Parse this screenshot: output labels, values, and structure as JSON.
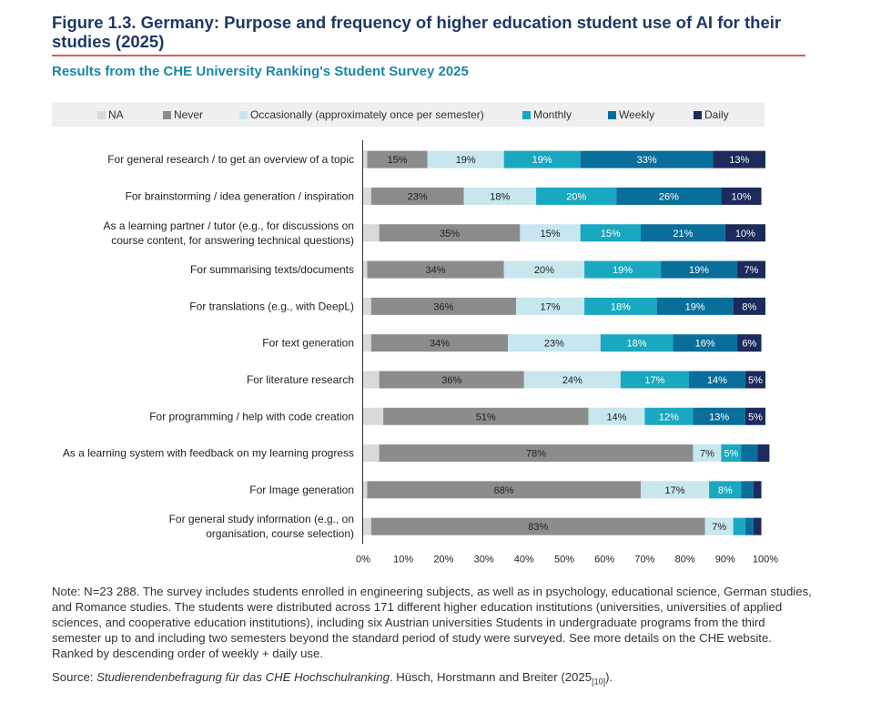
{
  "figure": {
    "title": "Figure 1.3. Germany: Purpose and frequency of higher education student use of AI for their studies (2025)",
    "subtitle": "Results from the CHE University Ranking's Student Survey 2025",
    "note": "Note: N=23 288. The survey includes students enrolled in engineering subjects, as well as in psychology, educational science, German studies, and Romance studies. The students were distributed across 171 different higher education institutions (universities, universities of applied sciences, and cooperative education institutions), including six Austrian universities Students in undergraduate programs from the third semester up to and including two semesters beyond the standard period of study were surveyed. See more details on the CHE website. Ranked by descending order of weekly + daily use.",
    "source_prefix": "Source: ",
    "source_italic": "Studierendenbefragung für das CHE Hochschulranking",
    "source_rest": ". Hüsch, Horstmann and Breiter (2025",
    "source_ref": "[10]",
    "source_end": ")."
  },
  "colors": {
    "NA": "#d9d9d9",
    "Never": "#8c8c8c",
    "Occasionally": "#c7e6ee",
    "Monthly": "#1aa8c0",
    "Weekly": "#0a6e9a",
    "Daily": "#1d2a5c"
  },
  "chart_data": {
    "type": "bar",
    "orientation": "horizontal",
    "stacked": true,
    "categories": [
      "For general research / to get an overview of a topic",
      "For brainstorming / idea generation / inspiration",
      "As a learning partner / tutor (e.g., for discussions on course content, for answering technical questions)",
      "For summarising texts/documents",
      "For translations (e.g., with DeepL)",
      "For text generation",
      "For literature research",
      "For programming / help with code creation",
      "As a learning system with feedback on my learning progress",
      "For Image generation",
      "For general study information (e.g., on organisation, course selection)"
    ],
    "category_lines": [
      [
        "For general research / to get an overview of a topic"
      ],
      [
        "For brainstorming / idea generation / inspiration"
      ],
      [
        "As a learning partner / tutor (e.g., for discussions on",
        "course content, for answering technical questions)"
      ],
      [
        "For summarising texts/documents"
      ],
      [
        "For translations (e.g., with DeepL)"
      ],
      [
        "For text generation"
      ],
      [
        "For literature research"
      ],
      [
        "For programming / help with code creation"
      ],
      [
        "As a learning system with feedback on my learning progress"
      ],
      [
        "For Image generation"
      ],
      [
        "For general study information (e.g., on",
        "organisation, course selection)"
      ]
    ],
    "series": [
      {
        "name": "NA",
        "label": "NA",
        "values": [
          1,
          2,
          4,
          1,
          2,
          2,
          4,
          5,
          4,
          1,
          2
        ]
      },
      {
        "name": "Never",
        "label": "Never",
        "values": [
          15,
          23,
          35,
          34,
          36,
          34,
          36,
          51,
          78,
          68,
          83
        ]
      },
      {
        "name": "Occasionally",
        "label": "Occasionally (approximately once per semester)",
        "values": [
          19,
          18,
          15,
          20,
          17,
          23,
          24,
          14,
          7,
          17,
          7
        ]
      },
      {
        "name": "Monthly",
        "label": "Monthly",
        "values": [
          19,
          20,
          15,
          19,
          18,
          18,
          17,
          12,
          5,
          8,
          3
        ]
      },
      {
        "name": "Weekly",
        "label": "Weekly",
        "values": [
          33,
          26,
          21,
          19,
          19,
          16,
          14,
          13,
          4,
          3,
          2
        ]
      },
      {
        "name": "Daily",
        "label": "Daily",
        "values": [
          13,
          10,
          10,
          7,
          8,
          6,
          5,
          5,
          3,
          2,
          2
        ]
      }
    ],
    "data_labels": [
      [
        null,
        "15%",
        "19%",
        "19%",
        "33%",
        "13%"
      ],
      [
        null,
        "23%",
        "18%",
        "20%",
        "26%",
        "10%"
      ],
      [
        null,
        "35%",
        "15%",
        "15%",
        "21%",
        "10%"
      ],
      [
        null,
        "34%",
        "20%",
        "19%",
        "19%",
        "7%"
      ],
      [
        null,
        "36%",
        "17%",
        "18%",
        "19%",
        "8%"
      ],
      [
        null,
        "34%",
        "23%",
        "18%",
        "16%",
        "6%"
      ],
      [
        null,
        "36%",
        "24%",
        "17%",
        "14%",
        "5%"
      ],
      [
        null,
        "51%",
        "14%",
        "12%",
        "13%",
        "5%"
      ],
      [
        null,
        "78%",
        "7%",
        "5%",
        null,
        null
      ],
      [
        null,
        "68%",
        "17%",
        "8%",
        null,
        null
      ],
      [
        null,
        "83%",
        "7%",
        null,
        null,
        null
      ]
    ],
    "xlim": [
      0,
      100
    ],
    "xticks": [
      "0%",
      "10%",
      "20%",
      "30%",
      "40%",
      "50%",
      "60%",
      "70%",
      "80%",
      "90%",
      "100%"
    ],
    "legend_position": "top"
  }
}
